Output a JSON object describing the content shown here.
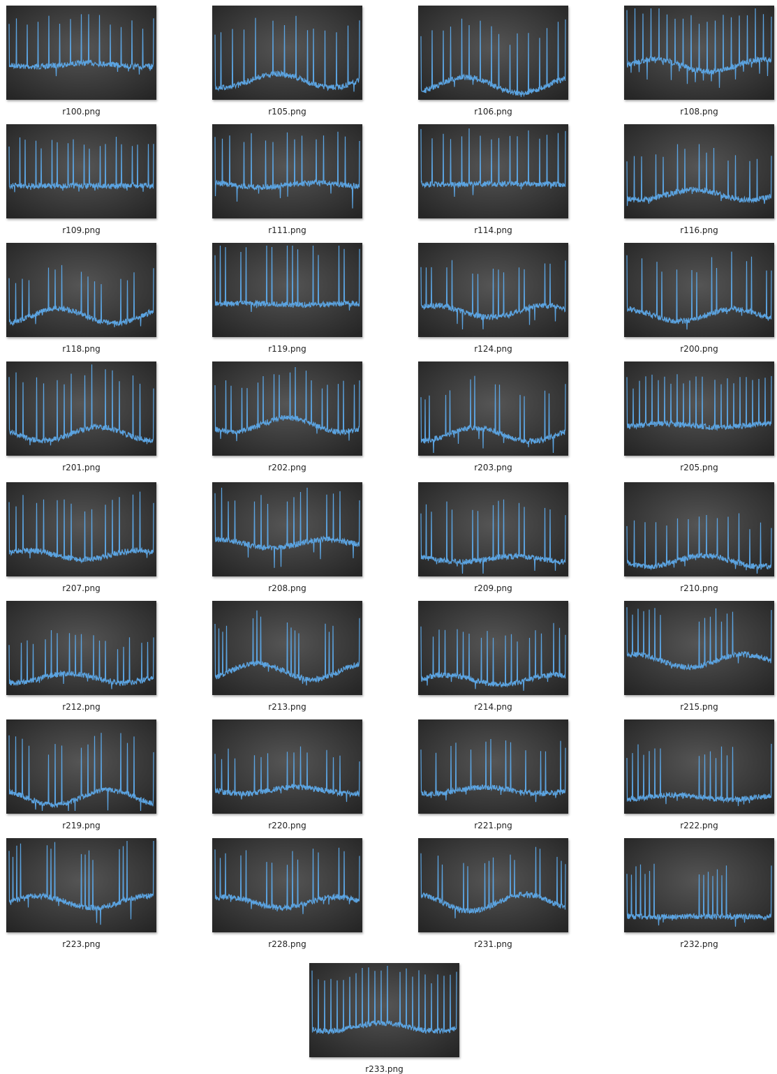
{
  "files": [
    {
      "name": "r100.png"
    },
    {
      "name": "r105.png"
    },
    {
      "name": "r106.png"
    },
    {
      "name": "r108.png"
    },
    {
      "name": "r109.png"
    },
    {
      "name": "r111.png"
    },
    {
      "name": "r114.png"
    },
    {
      "name": "r116.png"
    },
    {
      "name": "r118.png"
    },
    {
      "name": "r119.png"
    },
    {
      "name": "r124.png"
    },
    {
      "name": "r200.png"
    },
    {
      "name": "r201.png"
    },
    {
      "name": "r202.png"
    },
    {
      "name": "r203.png"
    },
    {
      "name": "r205.png"
    },
    {
      "name": "r207.png"
    },
    {
      "name": "r208.png"
    },
    {
      "name": "r209.png"
    },
    {
      "name": "r210.png"
    },
    {
      "name": "r212.png"
    },
    {
      "name": "r213.png"
    },
    {
      "name": "r214.png"
    },
    {
      "name": "r215.png"
    },
    {
      "name": "r219.png"
    },
    {
      "name": "r220.png"
    },
    {
      "name": "r221.png"
    },
    {
      "name": "r222.png"
    },
    {
      "name": "r223.png"
    },
    {
      "name": "r228.png"
    },
    {
      "name": "r231.png"
    },
    {
      "name": "r232.png"
    },
    {
      "name": "r233.png"
    }
  ]
}
